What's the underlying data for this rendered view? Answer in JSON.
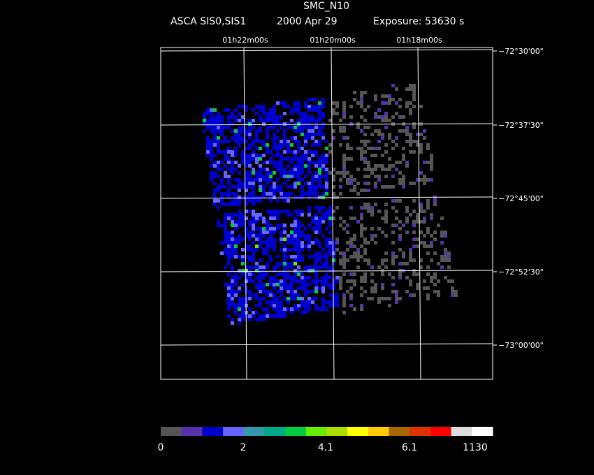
{
  "header": {
    "title": "SMC_N10",
    "instrument": "ASCA SIS0,SIS1",
    "date": "2000 Apr 29",
    "exposure": "Exposure: 53630 s"
  },
  "ra_labels": [
    "01h22m00s",
    "01h20m00s",
    "01h18m00s"
  ],
  "dec_labels": [
    "−72°30'00\"",
    "−72°37'30\"",
    "−72°45'00\"",
    "−72°52'30\"",
    "−73°00'00\""
  ],
  "colorbar_labels": [
    "0",
    "2",
    "4.1",
    "6.1",
    "1130"
  ]
}
